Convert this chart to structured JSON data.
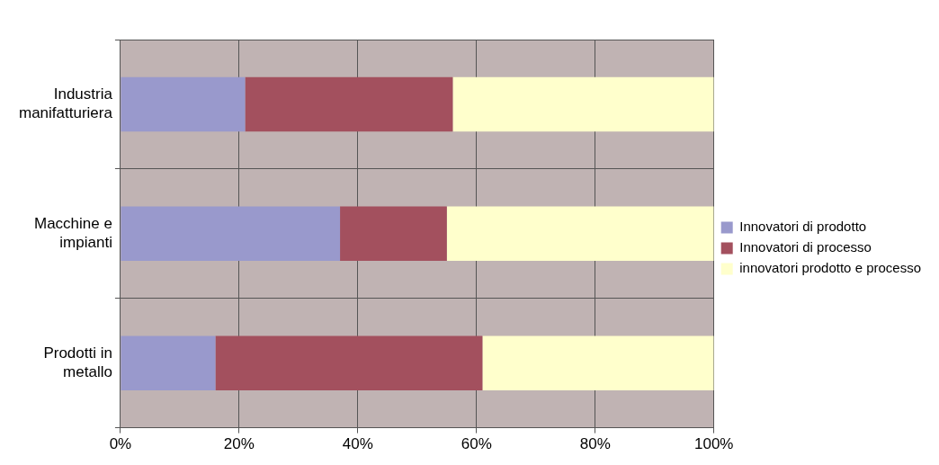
{
  "chart_data": {
    "type": "bar",
    "orientation": "horizontal",
    "stacked": true,
    "categories": [
      "Industria manifatturiera",
      "Macchine e impianti",
      "Prodotti in metallo"
    ],
    "series": [
      {
        "name": "Innovatori di prodotto",
        "color": "#9999cc",
        "values": [
          21,
          37,
          16
        ]
      },
      {
        "name": "Innovatori di processo",
        "color": "#a3505e",
        "values": [
          35,
          18,
          45
        ]
      },
      {
        "name": "innovatori prodotto e processo",
        "color": "#ffffcc",
        "values": [
          44,
          45,
          39
        ]
      }
    ],
    "xlim": [
      0,
      100
    ],
    "xticks": [
      {
        "value": 0,
        "label": "0%"
      },
      {
        "value": 20,
        "label": "20%"
      },
      {
        "value": 40,
        "label": "40%"
      },
      {
        "value": 60,
        "label": "60%"
      },
      {
        "value": 80,
        "label": "80%"
      },
      {
        "value": 100,
        "label": "100%"
      }
    ],
    "grid": true,
    "legend": "right"
  }
}
